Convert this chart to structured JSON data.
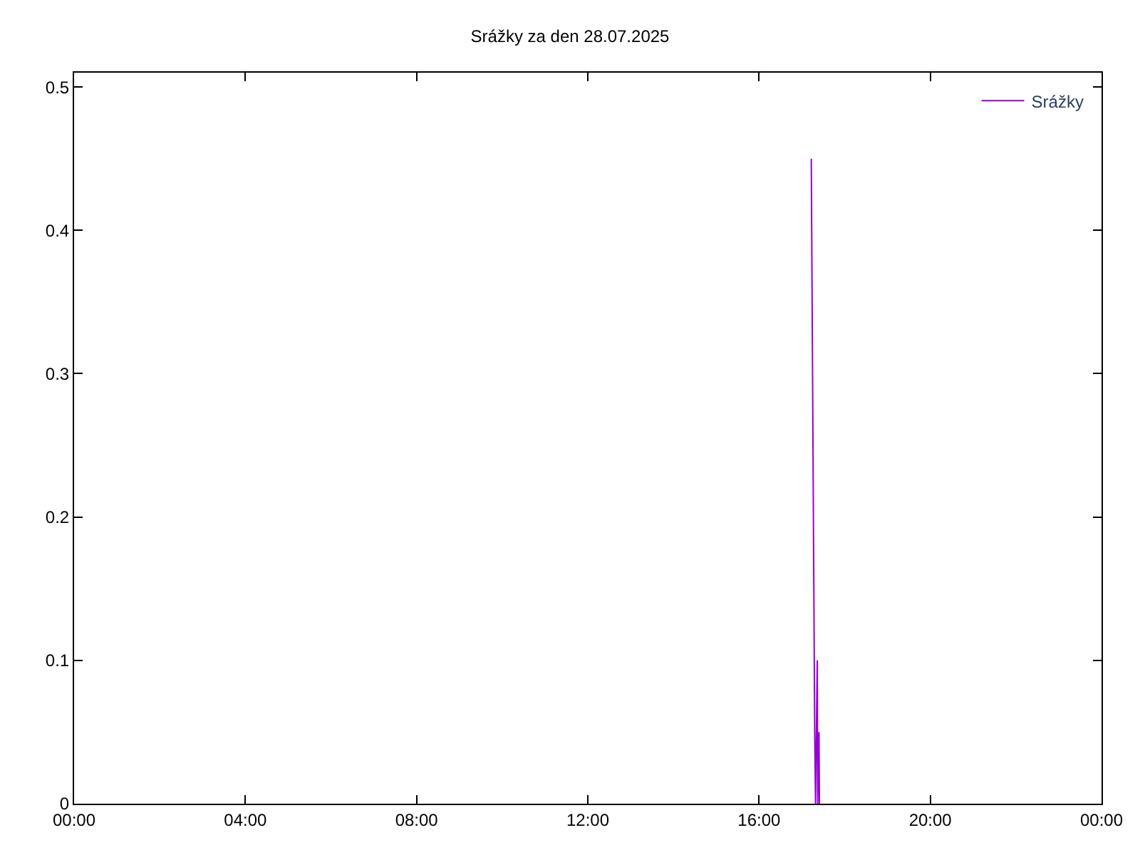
{
  "chart_data": {
    "type": "line",
    "title": "Srážky za den 28.07.2025",
    "x": [
      17.22,
      17.25,
      17.28,
      17.3,
      17.32,
      17.36,
      17.37,
      17.4,
      17.41
    ],
    "series": [
      {
        "name": "Srážky",
        "color": "#9400d3",
        "values": [
          0.45,
          0.3,
          0.15,
          0.05,
          0,
          0.1,
          0,
          0.05,
          0
        ]
      }
    ],
    "xlim": [
      0,
      24
    ],
    "xticks": [
      {
        "value": 0,
        "label": "00:00"
      },
      {
        "value": 4,
        "label": "04:00"
      },
      {
        "value": 8,
        "label": "08:00"
      },
      {
        "value": 12,
        "label": "12:00"
      },
      {
        "value": 16,
        "label": "16:00"
      },
      {
        "value": 20,
        "label": "20:00"
      },
      {
        "value": 24,
        "label": "00:00"
      }
    ],
    "ylim": [
      0,
      0.51
    ],
    "yticks": [
      0,
      0.1,
      0.2,
      0.3,
      0.4,
      0.5
    ],
    "legend": "top right",
    "marker": "none",
    "line_style": "solid"
  }
}
